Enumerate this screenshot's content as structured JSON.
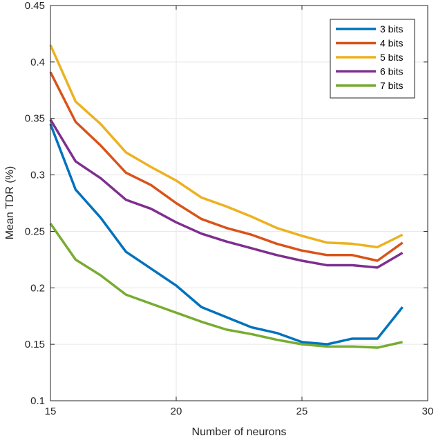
{
  "chart_data": {
    "type": "line",
    "title": "",
    "xlabel": "Number of neurons",
    "ylabel": "Mean TDR (%)",
    "xlim": [
      15,
      30
    ],
    "ylim": [
      0.1,
      0.45
    ],
    "xticks": [
      15,
      20,
      25,
      30
    ],
    "yticks": [
      0.1,
      0.15,
      0.2,
      0.25,
      0.3,
      0.35,
      0.4,
      0.45
    ],
    "xtick_labels": [
      "15",
      "20",
      "25",
      "30"
    ],
    "ytick_labels": [
      "0.1",
      "0.15",
      "0.2",
      "0.25",
      "0.3",
      "0.35",
      "0.4",
      "0.45"
    ],
    "grid": true,
    "legend_position": "top-right",
    "x": [
      15,
      16,
      17,
      18,
      19,
      20,
      21,
      22,
      23,
      24,
      25,
      26,
      27,
      28,
      29
    ],
    "series": [
      {
        "name": "3 bits",
        "color": "#0072bd",
        "values": [
          0.345,
          0.287,
          0.262,
          0.232,
          0.217,
          0.202,
          0.183,
          0.174,
          0.165,
          0.16,
          0.152,
          0.15,
          0.155,
          0.155,
          0.183
        ]
      },
      {
        "name": "4 bits",
        "color": "#d95319",
        "values": [
          0.391,
          0.347,
          0.326,
          0.302,
          0.291,
          0.275,
          0.261,
          0.253,
          0.247,
          0.239,
          0.233,
          0.229,
          0.229,
          0.224,
          0.24
        ]
      },
      {
        "name": "5 bits",
        "color": "#edb120",
        "values": [
          0.415,
          0.365,
          0.345,
          0.32,
          0.307,
          0.295,
          0.28,
          0.272,
          0.263,
          0.253,
          0.246,
          0.24,
          0.239,
          0.236,
          0.247
        ]
      },
      {
        "name": "6 bits",
        "color": "#7e2f8e",
        "values": [
          0.349,
          0.312,
          0.297,
          0.278,
          0.27,
          0.258,
          0.248,
          0.241,
          0.235,
          0.229,
          0.224,
          0.22,
          0.22,
          0.218,
          0.231
        ]
      },
      {
        "name": "7 bits",
        "color": "#77ac30",
        "values": [
          0.257,
          0.225,
          0.211,
          0.194,
          0.186,
          0.178,
          0.17,
          0.163,
          0.159,
          0.154,
          0.15,
          0.148,
          0.148,
          0.147,
          0.152
        ]
      }
    ]
  }
}
